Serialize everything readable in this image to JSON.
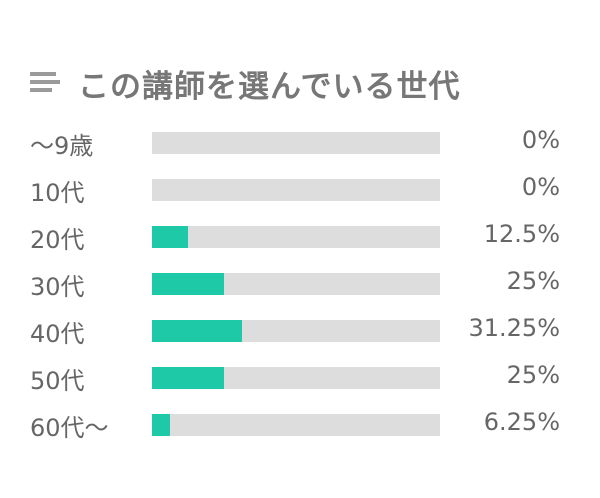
{
  "header": {
    "icon": "list-icon",
    "title": "この講師を選んでいる世代"
  },
  "colors": {
    "bar_fill": "#1ec9a8",
    "bar_track": "#dddddd",
    "text": "#666666"
  },
  "chart_data": {
    "type": "bar",
    "orientation": "horizontal",
    "title": "この講師を選んでいる世代",
    "categories": [
      "〜9歳",
      "10代",
      "20代",
      "30代",
      "40代",
      "50代",
      "60代〜"
    ],
    "values": [
      0,
      0,
      12.5,
      25,
      31.25,
      25,
      6.25
    ],
    "value_labels": [
      "0%",
      "0%",
      "12.5%",
      "25%",
      "31.25%",
      "25%",
      "6.25%"
    ],
    "xlim": [
      0,
      100
    ],
    "grid": false,
    "legend": "none"
  }
}
